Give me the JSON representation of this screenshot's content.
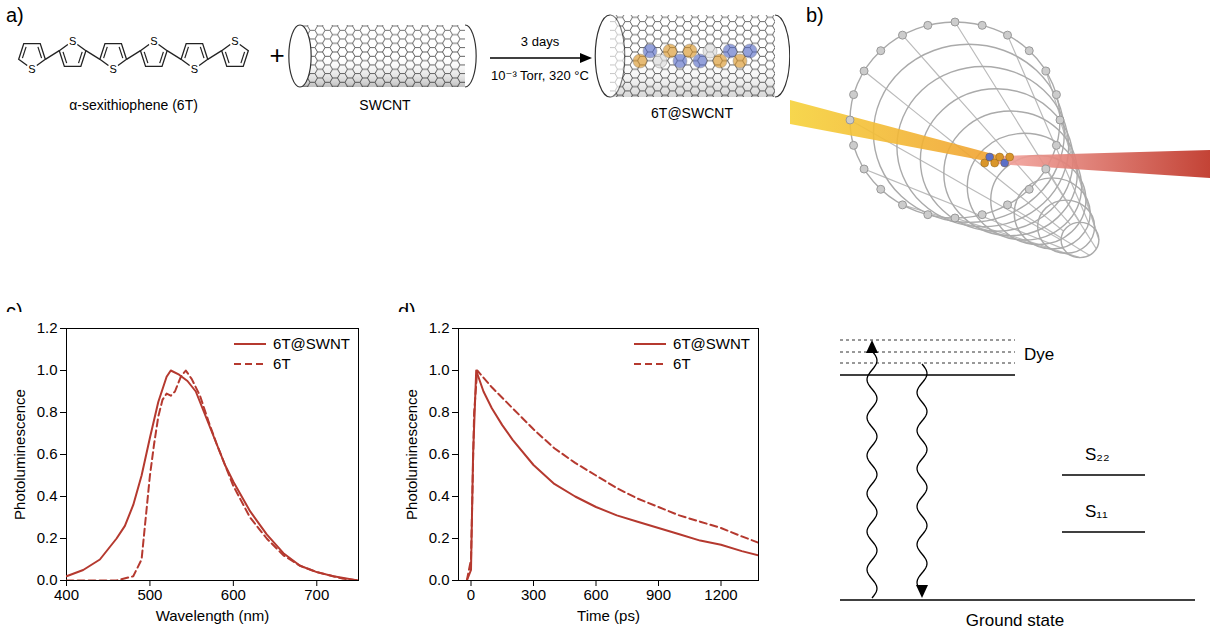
{
  "scheme": {
    "panel_label": "a)",
    "reactant_1": "α-sexithiophene (6T)",
    "atom_label": "S",
    "rings": 6,
    "plus": "+",
    "reactant_2": "SWCNT",
    "conditions_above": "3 days",
    "conditions_below": "10⁻³ Torr, 320 °C",
    "product": "6T@SWCNT"
  },
  "illustration": {
    "panel_label": "b)"
  },
  "chart_data": [
    {
      "panel_label": "c)",
      "type": "line",
      "x_label": "Wavelength (nm)",
      "y_label": "Photoluminescence",
      "xlim": [
        400,
        750
      ],
      "xticks": [
        400,
        500,
        600,
        700
      ],
      "ylim": [
        0,
        1.2
      ],
      "yticks": [
        {
          "value": 0,
          "label": "0.0"
        },
        0.2,
        0.4,
        0.6,
        0.8,
        {
          "value": 1,
          "label": "1.0"
        },
        1.2
      ],
      "grid": false,
      "legend": "top-right",
      "series": [
        {
          "name": "6T@SWNT",
          "color": "#b5392f",
          "line_style": "solid",
          "x": [
            400,
            420,
            440,
            460,
            470,
            480,
            490,
            500,
            510,
            520,
            525,
            535,
            545,
            555,
            565,
            575,
            590,
            600,
            620,
            640,
            660,
            680,
            700,
            720,
            750
          ],
          "values": [
            0.02,
            0.05,
            0.1,
            0.2,
            0.26,
            0.36,
            0.5,
            0.68,
            0.85,
            0.97,
            1.0,
            0.98,
            0.95,
            0.9,
            0.8,
            0.7,
            0.55,
            0.47,
            0.33,
            0.22,
            0.13,
            0.07,
            0.04,
            0.02,
            0.0
          ]
        },
        {
          "name": "6T",
          "color": "#b5392f",
          "line_style": "dashed",
          "x": [
            400,
            460,
            480,
            490,
            495,
            500,
            505,
            510,
            515,
            520,
            525,
            530,
            537,
            543,
            550,
            560,
            570,
            580,
            590,
            600,
            620,
            640,
            660,
            680,
            700,
            730,
            750
          ],
          "values": [
            0,
            0,
            0.02,
            0.1,
            0.3,
            0.5,
            0.65,
            0.78,
            0.86,
            0.89,
            0.88,
            0.9,
            0.97,
            1.0,
            0.96,
            0.88,
            0.76,
            0.65,
            0.55,
            0.45,
            0.3,
            0.2,
            0.12,
            0.07,
            0.04,
            0.01,
            0
          ]
        }
      ]
    },
    {
      "panel_label": "d)",
      "type": "line",
      "x_label": "Time (ps)",
      "y_label": "Photoluminescence",
      "xlim": [
        -60,
        1380
      ],
      "xticks": [
        0,
        300,
        600,
        900,
        1200
      ],
      "ylim": [
        0,
        1.2
      ],
      "yticks": [
        {
          "value": 0,
          "label": "0.0"
        },
        0.2,
        0.4,
        0.6,
        0.8,
        {
          "value": 1,
          "label": "1.0"
        },
        1.2
      ],
      "grid": false,
      "legend": "top-right",
      "series": [
        {
          "name": "6T@SWNT",
          "color": "#b5392f",
          "line_style": "solid",
          "x": [
            -20,
            0,
            10,
            25,
            60,
            100,
            150,
            200,
            300,
            400,
            500,
            600,
            700,
            800,
            900,
            1000,
            1100,
            1200,
            1300,
            1380
          ],
          "values": [
            0,
            0.05,
            0.6,
            1.0,
            0.9,
            0.82,
            0.74,
            0.67,
            0.55,
            0.46,
            0.4,
            0.35,
            0.31,
            0.28,
            0.25,
            0.22,
            0.19,
            0.17,
            0.14,
            0.12
          ]
        },
        {
          "name": "6T",
          "color": "#b5392f",
          "line_style": "dashed",
          "x": [
            -20,
            0,
            15,
            30,
            100,
            200,
            300,
            400,
            500,
            600,
            700,
            800,
            900,
            1000,
            1100,
            1200,
            1300,
            1380
          ],
          "values": [
            0,
            0.1,
            0.8,
            1.0,
            0.92,
            0.82,
            0.72,
            0.63,
            0.56,
            0.5,
            0.44,
            0.39,
            0.35,
            0.31,
            0.28,
            0.25,
            0.21,
            0.18
          ]
        }
      ]
    }
  ],
  "energy_diagram": {
    "dye": "Dye",
    "s22": "S₂₂",
    "s11": "S₁₁",
    "ground": "Ground state"
  }
}
